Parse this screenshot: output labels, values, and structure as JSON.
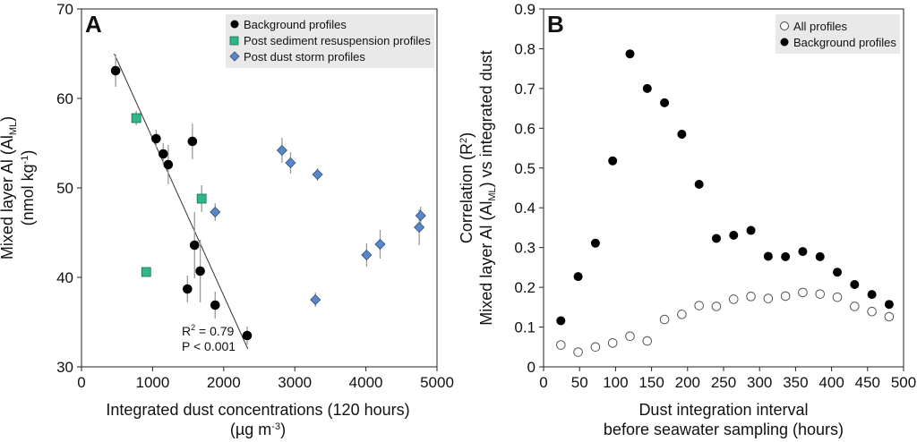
{
  "colors": {
    "background_profiles": "#000000",
    "sediment_resuspension": "#2db88a",
    "dust_storm": "#5b86c5",
    "error_bar": "#9a9a9a",
    "legend_bg": "#e9e9e9"
  },
  "chart_data": [
    {
      "type": "scatter",
      "panel_label": "A",
      "ylabel_line1": "Mixed layer Al (Al",
      "ylabel_sub": "ML",
      "ylabel_line1_end": ")",
      "ylabel_line2": "(nmol kg",
      "ylabel_line2_sup": "-1",
      "ylabel_line2_end": ")",
      "xlabel_line1": "Integrated dust concentrations (120 hours)",
      "xlabel_line2": "(µg m",
      "xlabel_line2_sup": "-3",
      "xlabel_line2_end": ")",
      "xlim": [
        0,
        5000
      ],
      "ylim": [
        30,
        70
      ],
      "xticks": [
        0,
        1000,
        2000,
        3000,
        4000,
        5000
      ],
      "yticks": [
        30,
        40,
        50,
        60,
        70
      ],
      "legend_position": "top-right",
      "annotation_r2": "R",
      "annotation_r2_sup": "2",
      "annotation_r2_rest": " = 0.79",
      "annotation_p": "P < 0.001",
      "regression_line": {
        "x": [
          460,
          2340
        ],
        "y": [
          65.0,
          32.0
        ]
      },
      "series": [
        {
          "name": "Background profiles",
          "marker": "circle",
          "points": [
            {
              "x": 480,
              "y": 63.1,
              "err": 1.8
            },
            {
              "x": 1050,
              "y": 55.5,
              "err": 1.0
            },
            {
              "x": 1150,
              "y": 53.8,
              "err": 1.2
            },
            {
              "x": 1220,
              "y": 52.6,
              "err": 2.2
            },
            {
              "x": 1560,
              "y": 55.2,
              "err": 2.0
            },
            {
              "x": 1590,
              "y": 43.6,
              "err": 3.7
            },
            {
              "x": 1670,
              "y": 40.7,
              "err": 3.5
            },
            {
              "x": 1490,
              "y": 38.7,
              "err": 1.5
            },
            {
              "x": 1880,
              "y": 36.9,
              "err": 1.5
            },
            {
              "x": 2330,
              "y": 33.5,
              "err": 1.0
            }
          ]
        },
        {
          "name": "Post sediment resuspension profiles",
          "marker": "square",
          "points": [
            {
              "x": 770,
              "y": 57.8,
              "err": 0.8
            },
            {
              "x": 910,
              "y": 40.6,
              "err": 0.5
            },
            {
              "x": 1690,
              "y": 48.8,
              "err": 1.5
            }
          ]
        },
        {
          "name": "Post dust storm profiles",
          "marker": "diamond",
          "points": [
            {
              "x": 1880,
              "y": 47.3,
              "err": 1.0
            },
            {
              "x": 2820,
              "y": 54.2,
              "err": 1.4
            },
            {
              "x": 2940,
              "y": 52.8,
              "err": 1.2
            },
            {
              "x": 3290,
              "y": 37.5,
              "err": 0.8
            },
            {
              "x": 3320,
              "y": 51.5,
              "err": 0.7
            },
            {
              "x": 4010,
              "y": 42.5,
              "err": 1.3
            },
            {
              "x": 4200,
              "y": 43.7,
              "err": 1.6
            },
            {
              "x": 4750,
              "y": 45.6,
              "err": 2.0
            },
            {
              "x": 4770,
              "y": 46.9,
              "err": 1.0
            }
          ]
        }
      ]
    },
    {
      "type": "scatter",
      "panel_label": "B",
      "ylabel_line1": "Correlation (R",
      "ylabel_line1_sup": "2",
      "ylabel_line1_end": ")",
      "ylabel_line2": "Mixed layer Al (Al",
      "ylabel_line2_sub": "ML",
      "ylabel_line2_end": ") vs integrated dust",
      "xlabel_line1": "Dust integration interval",
      "xlabel_line2": "before seawater sampling (hours)",
      "xlim": [
        0,
        500
      ],
      "ylim": [
        0,
        0.9
      ],
      "xticks": [
        0,
        50,
        100,
        150,
        200,
        250,
        300,
        350,
        400,
        450,
        500
      ],
      "yticks": [
        0,
        0.1,
        0.2,
        0.3,
        0.4,
        0.5,
        0.6,
        0.7,
        0.8,
        0.9
      ],
      "legend_position": "top-right",
      "series": [
        {
          "name": "All profiles",
          "marker": "open-circle",
          "x": [
            24,
            48,
            72,
            96,
            120,
            144,
            168,
            192,
            216,
            240,
            264,
            288,
            312,
            336,
            360,
            384,
            408,
            432,
            456,
            480
          ],
          "y": [
            0.055,
            0.037,
            0.05,
            0.06,
            0.077,
            0.065,
            0.119,
            0.132,
            0.154,
            0.152,
            0.17,
            0.177,
            0.172,
            0.178,
            0.187,
            0.183,
            0.175,
            0.152,
            0.139,
            0.126
          ]
        },
        {
          "name": "Background profiles",
          "marker": "circle",
          "x": [
            24,
            48,
            72,
            96,
            120,
            144,
            168,
            192,
            216,
            240,
            264,
            288,
            312,
            336,
            360,
            384,
            408,
            432,
            456,
            480
          ],
          "y": [
            0.116,
            0.227,
            0.311,
            0.518,
            0.787,
            0.7,
            0.664,
            0.585,
            0.459,
            0.323,
            0.331,
            0.343,
            0.278,
            0.277,
            0.29,
            0.277,
            0.238,
            0.207,
            0.182,
            0.157
          ]
        }
      ]
    }
  ]
}
